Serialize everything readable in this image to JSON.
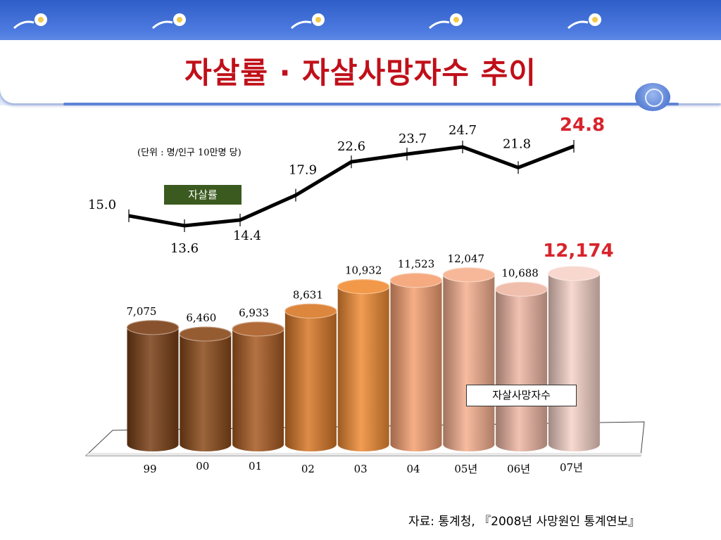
{
  "title": "자살률 · 자살사망자수 추이",
  "unit_note": "(단위 : 명/인구 10만명 당)",
  "source": "자료: 통계청, 『2008년 사망원인 통계연보』",
  "chart_data": {
    "type": "bar",
    "categories": [
      "99",
      "00",
      "01",
      "02",
      "03",
      "04",
      "05년",
      "06년",
      "07년"
    ],
    "series": [
      {
        "name": "자살사망자수",
        "type": "bar",
        "values": [
          7075,
          6460,
          6933,
          8631,
          10932,
          11523,
          12047,
          10688,
          12174
        ],
        "labels": [
          "7,075",
          "6,460",
          "6,933",
          "8,631",
          "10,932",
          "11,523",
          "12,047",
          "10,688",
          "12,174"
        ]
      },
      {
        "name": "자살률",
        "type": "line",
        "values": [
          15.0,
          13.6,
          14.4,
          17.9,
          22.6,
          23.7,
          24.7,
          21.8,
          24.8
        ],
        "labels": [
          "15.0",
          "13.6",
          "14.4",
          "17.9",
          "22.6",
          "23.7",
          "24.7",
          "21.8",
          "24.8"
        ]
      }
    ],
    "bar_colors": [
      "#7a3f16",
      "#8a4a1a",
      "#a85a22",
      "#d87828",
      "#f08c35",
      "#f4a072",
      "#f6b08f",
      "#eeb7a4",
      "#f6d2c8"
    ],
    "line_color": "#000000",
    "highlight_color": "#d8242c"
  }
}
